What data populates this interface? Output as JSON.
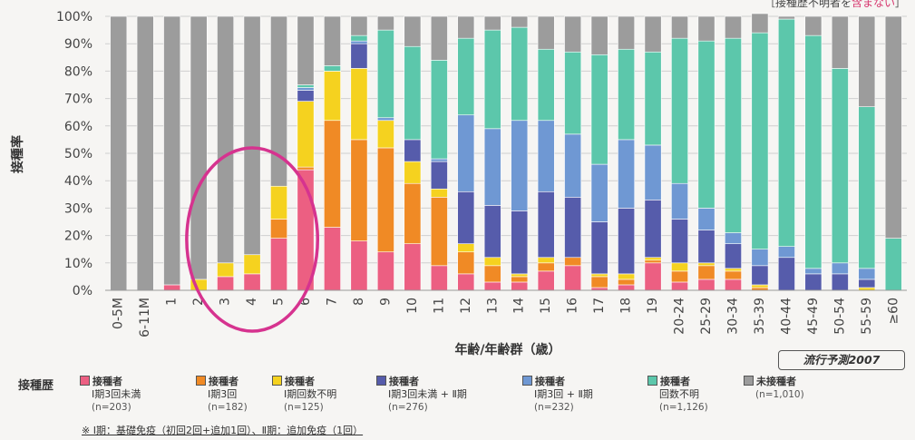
{
  "chart_data": {
    "type": "bar",
    "stacked": true,
    "categories": [
      "0-5M",
      "6-11M",
      "1",
      "2",
      "3",
      "4",
      "5",
      "6",
      "7",
      "8",
      "9",
      "10",
      "11",
      "12",
      "13",
      "14",
      "15",
      "16",
      "17",
      "18",
      "19",
      "20-24",
      "25-29",
      "30-34",
      "35-39",
      "40-44",
      "45-49",
      "50-54",
      "55-59",
      "≥60"
    ],
    "xlabel": "年齢/年齢群（歳）",
    "ylabel": "接種率",
    "ylim": [
      0,
      100
    ],
    "yticks": [
      "0%",
      "10%",
      "20%",
      "30%",
      "40%",
      "50%",
      "60%",
      "70%",
      "80%",
      "90%",
      "100%"
    ],
    "grid": true,
    "highlight": {
      "categories": [
        "3",
        "4",
        "5"
      ],
      "shape": "ellipse",
      "color": "#d6338f"
    },
    "series": [
      {
        "name": "接種者 Ⅰ期3回未満",
        "color": "#ec5f82",
        "values": [
          0,
          0,
          2,
          0,
          5,
          6,
          19,
          44,
          23,
          18,
          14,
          17,
          9,
          6,
          3,
          3,
          7,
          9,
          1,
          2,
          10,
          3,
          4,
          4,
          0,
          0,
          0,
          0,
          0,
          0
        ]
      },
      {
        "name": "接種者 Ⅰ期3回",
        "color": "#f08a25",
        "values": [
          0,
          0,
          0,
          0,
          0,
          0,
          7,
          1,
          39,
          37,
          38,
          22,
          25,
          8,
          6,
          2,
          3,
          3,
          4,
          2,
          1,
          4,
          5,
          3,
          1,
          0,
          0,
          0,
          0,
          0
        ]
      },
      {
        "name": "接種者 Ⅰ期回数不明",
        "color": "#f5d21f",
        "values": [
          0,
          0,
          0,
          4,
          5,
          7,
          12,
          24,
          18,
          26,
          10,
          8,
          3,
          3,
          3,
          1,
          2,
          0,
          1,
          2,
          1,
          3,
          1,
          1,
          1,
          0,
          0,
          0,
          1,
          0
        ]
      },
      {
        "name": "接種者 Ⅰ期3回未満 + Ⅱ期",
        "color": "#565cab",
        "values": [
          0,
          0,
          0,
          0,
          0,
          0,
          0,
          4,
          0,
          9,
          0,
          8,
          10,
          19,
          19,
          23,
          24,
          22,
          19,
          24,
          21,
          16,
          12,
          9,
          7,
          12,
          6,
          6,
          3,
          0
        ]
      },
      {
        "name": "接種者 Ⅰ期3回 + Ⅱ期",
        "color": "#6f98d3",
        "values": [
          0,
          0,
          0,
          0,
          0,
          0,
          0,
          1,
          0,
          1,
          1,
          0,
          1,
          28,
          28,
          33,
          26,
          23,
          21,
          25,
          20,
          13,
          8,
          4,
          6,
          4,
          2,
          4,
          4,
          0
        ]
      },
      {
        "name": "接種者 回数不明",
        "color": "#5cc7ab",
        "values": [
          0,
          0,
          0,
          0,
          0,
          0,
          0,
          1,
          2,
          2,
          32,
          34,
          36,
          28,
          36,
          34,
          26,
          30,
          40,
          33,
          34,
          53,
          61,
          71,
          79,
          83,
          85,
          71,
          59,
          19
        ]
      },
      {
        "name": "未接種者",
        "color": "#9c9c9c",
        "values": [
          100,
          100,
          98,
          96,
          90,
          87,
          62,
          25,
          18,
          7,
          5,
          11,
          16,
          8,
          5,
          4,
          12,
          13,
          14,
          12,
          13,
          8,
          9,
          8,
          7,
          1,
          7,
          19,
          33,
          81
        ]
      }
    ]
  },
  "corner_note": {
    "prefix": "［接種歴不明者を",
    "highlight": "含まない",
    "suffix": "］"
  },
  "legend": {
    "title": "接種歴",
    "items": [
      {
        "label": "接種者",
        "sub": "Ⅰ期3回未満",
        "n": "(n=203)"
      },
      {
        "label": "接種者",
        "sub": "Ⅰ期3回",
        "n": "(n=182)"
      },
      {
        "label": "接種者",
        "sub": "Ⅰ期回数不明",
        "n": "(n=125)"
      },
      {
        "label": "接種者",
        "sub": "Ⅰ期3回未満 + Ⅱ期",
        "n": "(n=276)"
      },
      {
        "label": "接種者",
        "sub": "Ⅰ期3回 + Ⅱ期",
        "n": "(n=232)"
      },
      {
        "label": "接種者",
        "sub": "回数不明",
        "n": "(n=1,126)"
      },
      {
        "label": "未接種者",
        "sub": "",
        "n": "(n=1,010)"
      }
    ]
  },
  "source_badge": "流行予測2007",
  "footnote": "※ Ⅰ期：基礎免疫（初回2回+追加1回）、Ⅱ期：追加免疫（1回）"
}
